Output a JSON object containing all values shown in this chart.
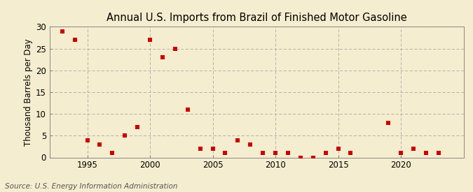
{
  "title": "Annual U.S. Imports from Brazil of Finished Motor Gasoline",
  "ylabel": "Thousand Barrels per Day",
  "source": "Source: U.S. Energy Information Administration",
  "background_color": "#f5edcf",
  "plot_background_color": "#f5edcf",
  "marker_color": "#cc0000",
  "marker": "s",
  "marker_size": 4,
  "years": [
    1993,
    1994,
    1995,
    1996,
    1997,
    1998,
    1999,
    2000,
    2001,
    2002,
    2003,
    2004,
    2005,
    2006,
    2007,
    2008,
    2009,
    2010,
    2011,
    2012,
    2013,
    2014,
    2015,
    2016,
    2019,
    2020,
    2021,
    2022,
    2023
  ],
  "values": [
    29,
    27,
    4,
    3,
    1,
    5,
    7,
    27,
    23,
    25,
    11,
    2,
    2,
    1,
    4,
    3,
    1,
    1,
    1,
    0,
    0,
    1,
    2,
    1,
    8,
    1,
    2,
    1,
    1
  ],
  "xlim": [
    1992,
    2025
  ],
  "ylim": [
    0,
    30
  ],
  "yticks": [
    0,
    5,
    10,
    15,
    20,
    25,
    30
  ],
  "xticks": [
    1995,
    2000,
    2005,
    2010,
    2015,
    2020
  ],
  "grid_color": "#aaaaaa",
  "title_fontsize": 10.5,
  "label_fontsize": 8.5,
  "tick_fontsize": 8.5,
  "source_fontsize": 7.5
}
